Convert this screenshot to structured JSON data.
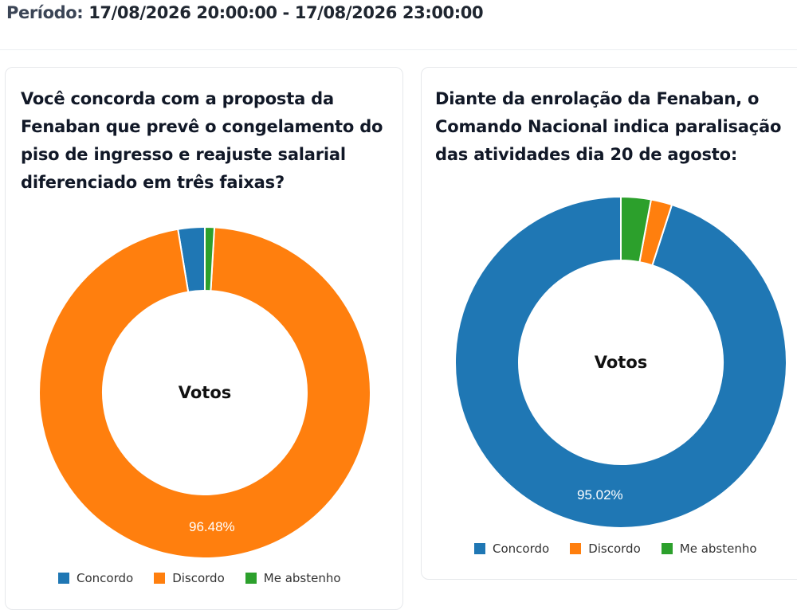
{
  "period": {
    "label": "Período:",
    "value": "17/08/2026 20:00:00 - 17/08/2026 23:00:00"
  },
  "legend_labels": [
    "Concordo",
    "Discordo",
    "Me abstenho"
  ],
  "colors": {
    "Concordo": "#1f77b4",
    "Discordo": "#ff7f0e",
    "Me abstenho": "#2ca02c"
  },
  "chart_data": [
    {
      "type": "pie",
      "title": "Você concorda com a proposta da Fenaban que prevê o congelamento do piso de ingresso e reajuste salarial diferenciado em três faixas?",
      "center_label": "Votos",
      "categories": [
        "Concordo",
        "Discordo",
        "Me abstenho"
      ],
      "values": [
        2.6,
        96.48,
        0.92
      ],
      "data_labels": [
        "",
        "96.48%",
        ""
      ],
      "legend_position": "bottom"
    },
    {
      "type": "pie",
      "title": "Diante da enrolação da Fenaban, o Comando Nacional indica paralisação das atividades dia 20 de agosto:",
      "center_label": "Votos",
      "categories": [
        "Concordo",
        "Discordo",
        "Me abstenho"
      ],
      "values": [
        95.02,
        2.06,
        2.92
      ],
      "data_labels": [
        "95.02%",
        "",
        ""
      ],
      "legend_position": "bottom"
    }
  ]
}
